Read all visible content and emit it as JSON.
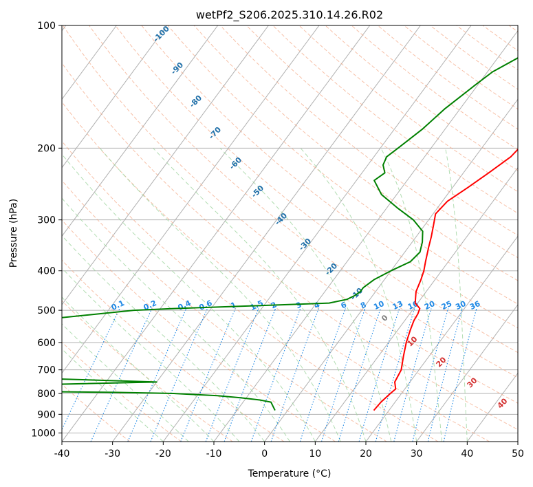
{
  "chart_data": {
    "type": "line",
    "title": "wetPf2_S206.2025.310.14.26.R02",
    "xlabel": "Temperature (°C)",
    "ylabel": "Pressure (hPa)",
    "xlim": [
      -40,
      50
    ],
    "ylim": [
      1050,
      100
    ],
    "y_scale": "log",
    "x_ticks": [
      -40,
      -30,
      -20,
      -10,
      0,
      10,
      20,
      30,
      40,
      50
    ],
    "y_ticks": [
      100,
      200,
      300,
      400,
      500,
      600,
      700,
      800,
      900,
      1000
    ],
    "grid": true,
    "series": [
      {
        "role": "temperature",
        "color": "#ff0000",
        "pressure": [
          880,
          840,
          800,
          780,
          750,
          700,
          650,
          600,
          560,
          530,
          510,
          495,
          480,
          450,
          420,
          400,
          380,
          350,
          330,
          310,
          290,
          270,
          250,
          230,
          210,
          190,
          170,
          150,
          130,
          120,
          115,
          110,
          105,
          100
        ],
        "temp": [
          17,
          17.2,
          17.8,
          18.2,
          17,
          16.5,
          15,
          13.5,
          12.5,
          11.8,
          11.6,
          11.2,
          9.5,
          8,
          7.2,
          6.5,
          5.5,
          4,
          3,
          1.8,
          0.5,
          1,
          3,
          5,
          7,
          7.8,
          8.5,
          10,
          12.5,
          14.5,
          15,
          14.8,
          14.5,
          14.8
        ]
      },
      {
        "role": "dewpoint",
        "color": "#008000",
        "pressure": [
          880,
          860,
          840,
          830,
          820,
          810,
          800,
          795,
          790,
          780,
          770,
          760,
          750,
          740,
          730,
          720,
          650,
          550,
          500,
          495,
          490,
          485,
          480,
          470,
          460,
          450,
          440,
          420,
          400,
          380,
          360,
          340,
          320,
          300,
          280,
          260,
          240,
          230,
          220,
          210,
          200,
          180,
          160,
          140,
          130,
          120,
          110,
          100
        ],
        "temp": [
          -2.5,
          -3.5,
          -4.5,
          -7,
          -11,
          -16,
          -25,
          -37,
          -60,
          -75,
          -70,
          -50,
          -30,
          -45,
          -62,
          -75,
          -75,
          -75,
          -45,
          -37,
          -27,
          -17,
          -7.5,
          -4.5,
          -3.5,
          -3,
          -3,
          -2,
          0,
          2.5,
          3,
          2,
          0.5,
          -3,
          -8,
          -13,
          -16.5,
          -15.5,
          -17,
          -17.5,
          -16.5,
          -14.5,
          -13,
          -10.5,
          -9,
          -6,
          -3,
          -2.5
        ]
      }
    ],
    "isotherm_labels": [
      -100,
      -90,
      -80,
      -70,
      -60,
      -50,
      -40,
      -30,
      -20,
      -10
    ],
    "mixing_ratio_labels": [
      "0.1",
      "0.2",
      "0.4",
      "0.6",
      "1",
      "1.5",
      "2",
      "3",
      "4",
      "6",
      "8",
      "10",
      "13",
      "16",
      "20",
      "25",
      "30",
      "36"
    ],
    "dry_adiabat_labels": [
      0,
      10,
      20,
      30,
      40
    ],
    "colors": {
      "temperature": "#ff0000",
      "dewpoint": "#008000",
      "mixing_ratio": "#1e88e5",
      "isotherm": "#1f6fa8",
      "dry_adiabat": "#d32f2f",
      "dry_adiabat_line": "#f4a582",
      "moist_adiabat_line": "#9fd49f",
      "grid": "#b0b0b0"
    }
  }
}
